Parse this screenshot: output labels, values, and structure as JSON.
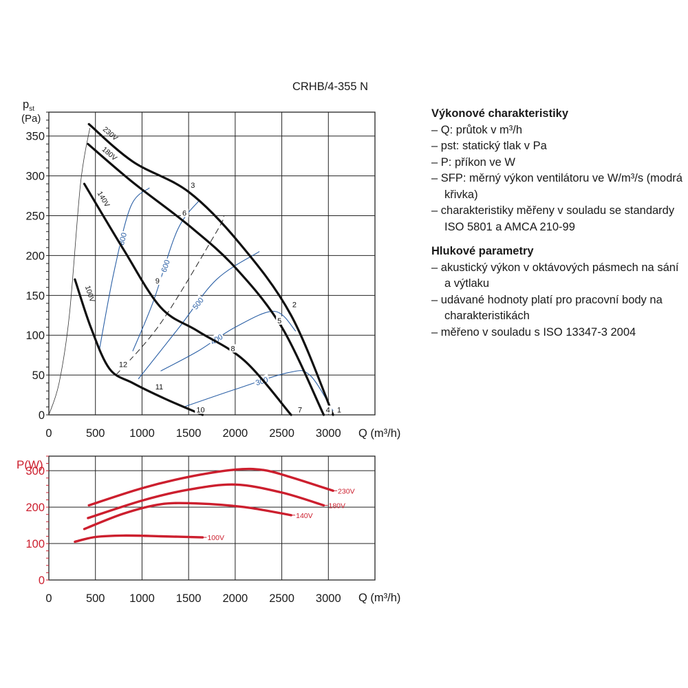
{
  "chart_data": [
    {
      "type": "line",
      "title": "CRHB/4-355 N",
      "ylabel": "pst (Pa)",
      "xlabel": "Q (m³/h)",
      "xlim": [
        0,
        3500
      ],
      "ylim": [
        0,
        380
      ],
      "xticks": [
        0,
        500,
        1000,
        1500,
        2000,
        2500,
        3000
      ],
      "yticks": [
        0,
        50,
        100,
        150,
        200,
        250,
        300,
        350
      ],
      "grid": true,
      "series": [
        {
          "name": "230V",
          "color": "#111111",
          "points": [
            [
              430,
              365
            ],
            [
              900,
              318
            ],
            [
              1500,
              280
            ],
            [
              2050,
              215
            ],
            [
              2600,
              125
            ],
            [
              3050,
              0
            ]
          ]
        },
        {
          "name": "180V",
          "color": "#111111",
          "points": [
            [
              420,
              340
            ],
            [
              900,
              292
            ],
            [
              1500,
              238
            ],
            [
              2000,
              185
            ],
            [
              2500,
              110
            ],
            [
              2950,
              0
            ]
          ]
        },
        {
          "name": "140V",
          "color": "#111111",
          "points": [
            [
              380,
              290
            ],
            [
              800,
              208
            ],
            [
              1200,
              135
            ],
            [
              1600,
              105
            ],
            [
              2100,
              68
            ],
            [
              2600,
              0
            ]
          ]
        },
        {
          "name": "100V",
          "color": "#111111",
          "points": [
            [
              280,
              170
            ],
            [
              450,
              110
            ],
            [
              650,
              58
            ],
            [
              900,
              40
            ],
            [
              1250,
              20
            ],
            [
              1650,
              0
            ]
          ]
        }
      ],
      "sfp_curves": [
        {
          "label": "800",
          "color": "#2a5fa5",
          "points": [
            [
              540,
              80
            ],
            [
              700,
              180
            ],
            [
              880,
              262
            ],
            [
              1080,
              285
            ]
          ]
        },
        {
          "label": "600",
          "color": "#2a5fa5",
          "points": [
            [
              900,
              80
            ],
            [
              1120,
              142
            ],
            [
              1380,
              232
            ],
            [
              1620,
              270
            ]
          ]
        },
        {
          "label": "500",
          "color": "#2a5fa5",
          "points": [
            [
              960,
              45
            ],
            [
              1400,
              110
            ],
            [
              1800,
              170
            ],
            [
              2260,
              205
            ]
          ]
        },
        {
          "label": "400",
          "color": "#2a5fa5",
          "points": [
            [
              1200,
              55
            ],
            [
              1600,
              80
            ],
            [
              2000,
              110
            ],
            [
              2420,
              130
            ],
            [
              2650,
              105
            ]
          ]
        },
        {
          "label": "300",
          "color": "#2a5fa5",
          "points": [
            [
              1450,
              10
            ],
            [
              2000,
              32
            ],
            [
              2570,
              53
            ],
            [
              2800,
              50
            ],
            [
              3050,
              5
            ]
          ]
        }
      ],
      "system_curve_dashed": [
        [
          720,
          50
        ],
        [
          1200,
          115
        ],
        [
          1800,
          230
        ],
        [
          1880,
          250
        ]
      ],
      "system_curve_thin": [
        [
          0,
          0
        ],
        [
          110,
          40
        ],
        [
          220,
          125
        ],
        [
          340,
          290
        ],
        [
          440,
          360
        ]
      ],
      "working_points": [
        {
          "label": "1",
          "x": 3100,
          "y": 3
        },
        {
          "label": "2",
          "x": 2620,
          "y": 135
        },
        {
          "label": "3",
          "x": 1530,
          "y": 285
        },
        {
          "label": "4",
          "x": 2980,
          "y": 3
        },
        {
          "label": "5",
          "x": 2460,
          "y": 115
        },
        {
          "label": "6",
          "x": 1440,
          "y": 250
        },
        {
          "label": "7",
          "x": 2680,
          "y": 3
        },
        {
          "label": "8",
          "x": 1960,
          "y": 80
        },
        {
          "label": "9",
          "x": 1150,
          "y": 165
        },
        {
          "label": "10",
          "x": 1590,
          "y": 3
        },
        {
          "label": "11",
          "x": 1150,
          "y": 32
        },
        {
          "label": "12",
          "x": 760,
          "y": 60
        }
      ]
    },
    {
      "type": "line",
      "title": "",
      "ylabel": "P(W)",
      "xlabel": "Q (m³/h)",
      "xlim": [
        0,
        3500
      ],
      "ylim": [
        0,
        340
      ],
      "xticks": [
        0,
        500,
        1000,
        1500,
        2000,
        2500,
        3000
      ],
      "yticks": [
        0,
        100,
        200,
        300
      ],
      "grid": true,
      "series": [
        {
          "name": "230V",
          "color": "#cc1f2e",
          "points": [
            [
              430,
              205
            ],
            [
              1000,
              252
            ],
            [
              1500,
              283
            ],
            [
              2000,
              303
            ],
            [
              2300,
              302
            ],
            [
              2600,
              282
            ],
            [
              3050,
              245
            ]
          ]
        },
        {
          "name": "180V",
          "color": "#cc1f2e",
          "points": [
            [
              420,
              170
            ],
            [
              1000,
              218
            ],
            [
              1500,
              248
            ],
            [
              2000,
              262
            ],
            [
              2500,
              240
            ],
            [
              2950,
              205
            ]
          ]
        },
        {
          "name": "140V",
          "color": "#cc1f2e",
          "points": [
            [
              380,
              140
            ],
            [
              800,
              182
            ],
            [
              1200,
              208
            ],
            [
              1600,
              210
            ],
            [
              2100,
              200
            ],
            [
              2600,
              178
            ]
          ]
        },
        {
          "name": "100V",
          "color": "#cc1f2e",
          "points": [
            [
              280,
              105
            ],
            [
              500,
              118
            ],
            [
              800,
              122
            ],
            [
              1200,
              120
            ],
            [
              1650,
              117
            ]
          ]
        }
      ]
    }
  ],
  "legend": {
    "section1_title": "Výkonové charakteristiky",
    "section1_items": [
      "Q: průtok v m³/h",
      "pst: statický tlak v Pa",
      "P: příkon ve W",
      "SFP: měrný výkon ventilátoru ve W/m³/s (modrá křivka)",
      "charakteristiky měřeny v souladu se standardy ISO 5801 a AMCA 210-99"
    ],
    "section2_title": "Hlukové parametry",
    "section2_items": [
      "akustický výkon v oktávových pásmech na sání a výtlaku",
      "udávané hodnoty platí pro pracovní body na charakteristikách",
      "měřeno v souladu s ISO 13347-3 2004"
    ]
  }
}
